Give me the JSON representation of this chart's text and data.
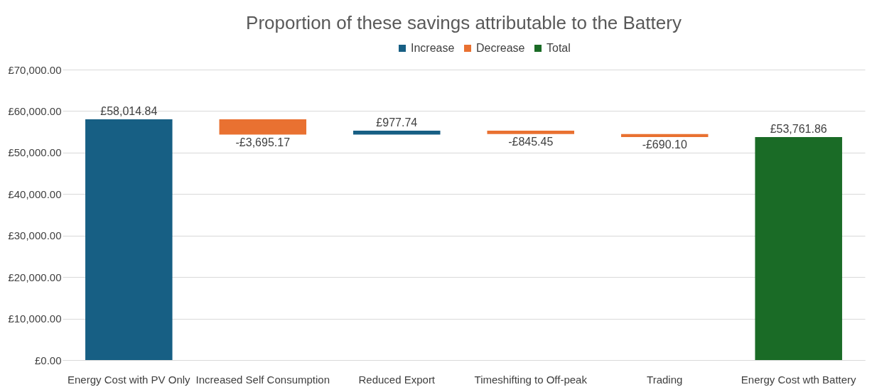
{
  "chart_data": {
    "type": "bar",
    "title": "Proportion of these savings attributable to the Battery",
    "categories": [
      "Energy Cost with PV Only",
      "Increased Self Consumption",
      "Reduced Export",
      "Timeshifting to Off-peak",
      "Trading",
      "Energy Cost wth Battery"
    ],
    "series": [
      {
        "name": "Increase",
        "color": "#175f84",
        "base": [
          0,
          null,
          54319.67,
          null,
          null,
          null
        ],
        "values": [
          58014.84,
          null,
          977.74,
          null,
          null,
          null
        ],
        "value_labels": [
          "£58,014.84",
          null,
          "£977.74",
          null,
          null,
          null
        ]
      },
      {
        "name": "Decrease",
        "color": "#e97131",
        "base": [
          null,
          58014.84,
          null,
          55297.41,
          54451.96,
          null
        ],
        "values": [
          null,
          -3695.17,
          null,
          -845.45,
          -690.1,
          null
        ],
        "value_labels": [
          null,
          "-£3,695.17",
          null,
          "-£845.45",
          "-£690.10",
          null
        ]
      },
      {
        "name": "Total",
        "color": "#1a6b26",
        "base": [
          null,
          null,
          null,
          null,
          null,
          0
        ],
        "values": [
          null,
          null,
          null,
          null,
          null,
          53761.86
        ],
        "value_labels": [
          null,
          null,
          null,
          null,
          null,
          "£53,761.86"
        ]
      }
    ],
    "ylim": [
      0,
      70000
    ],
    "yticks": [
      {
        "value": 0,
        "label": "£0.00"
      },
      {
        "value": 10000,
        "label": "£10,000.00"
      },
      {
        "value": 20000,
        "label": "£20,000.00"
      },
      {
        "value": 30000,
        "label": "£30,000.00"
      },
      {
        "value": 40000,
        "label": "£40,000.00"
      },
      {
        "value": 50000,
        "label": "£50,000.00"
      },
      {
        "value": 60000,
        "label": "£60,000.00"
      },
      {
        "value": 70000,
        "label": "£70,000.00"
      }
    ],
    "grid": "y",
    "legend": "top"
  }
}
